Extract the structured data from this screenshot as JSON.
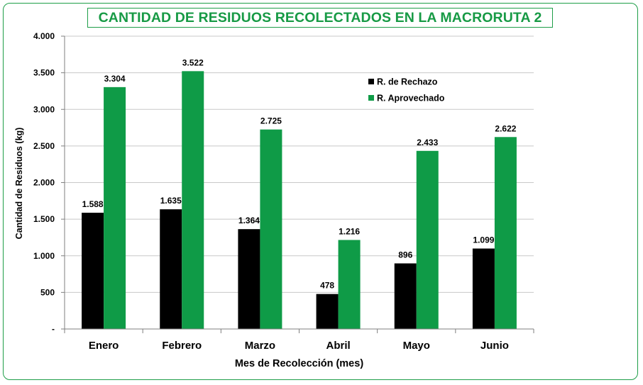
{
  "chart_data": {
    "type": "bar",
    "title": "CANTIDAD DE RESIDUOS RECOLECTADOS EN LA MACRORUTA 2",
    "xlabel": "Mes de Recolección (mes)",
    "ylabel": "Cantidad de Residuos (kg)",
    "categories": [
      "Enero",
      "Febrero",
      "Marzo",
      "Abril",
      "Mayo",
      "Junio"
    ],
    "series": [
      {
        "name": "R. de Rechazo",
        "color": "#000000",
        "values": [
          1588,
          1635,
          1364,
          478,
          896,
          1099
        ],
        "labels": [
          "1.588",
          "1.635",
          "1.364",
          "478",
          "896",
          "1.099"
        ]
      },
      {
        "name": "R. Aprovechado",
        "color": "#0f9b47",
        "values": [
          3304,
          3522,
          2725,
          1216,
          2433,
          2622
        ],
        "labels": [
          "3.304",
          "3.522",
          "2.725",
          "1.216",
          "2.433",
          "2.622"
        ]
      }
    ],
    "ylim": [
      0,
      4000
    ],
    "yticks": [
      0,
      500,
      1000,
      1500,
      2000,
      2500,
      3000,
      3500,
      4000
    ],
    "ytick_labels": [
      "-",
      "500",
      "1.000",
      "1.500",
      "2.000",
      "2.500",
      "3.000",
      "3.500",
      "4.000"
    ],
    "grid": true,
    "legend_position": "top-right"
  }
}
